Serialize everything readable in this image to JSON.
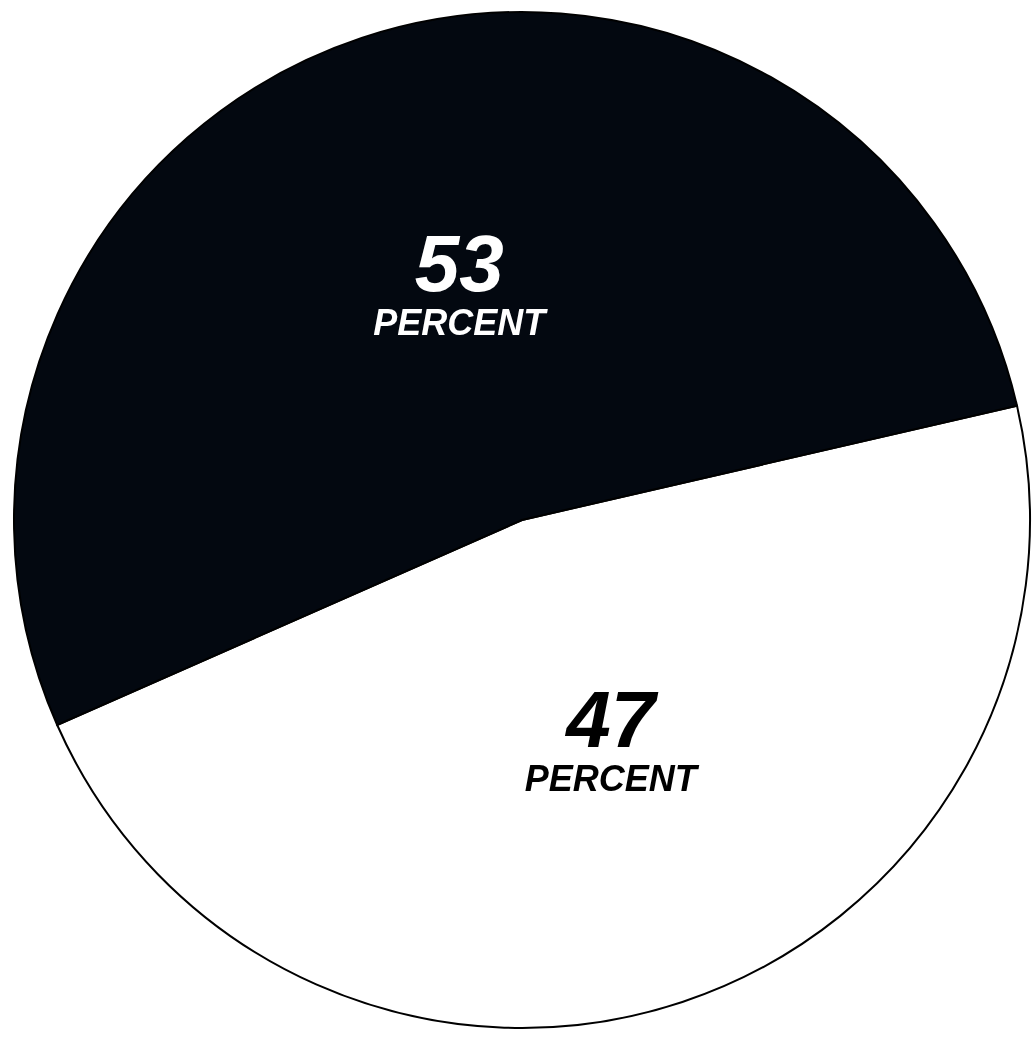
{
  "chart_data": {
    "type": "pie",
    "categories": [
      null,
      null
    ],
    "values": [
      47,
      53
    ],
    "colors": [
      "#ffffff",
      "#030810"
    ],
    "value_labels": [
      "47 PERCENT",
      "53 PERCENT"
    ]
  }
}
